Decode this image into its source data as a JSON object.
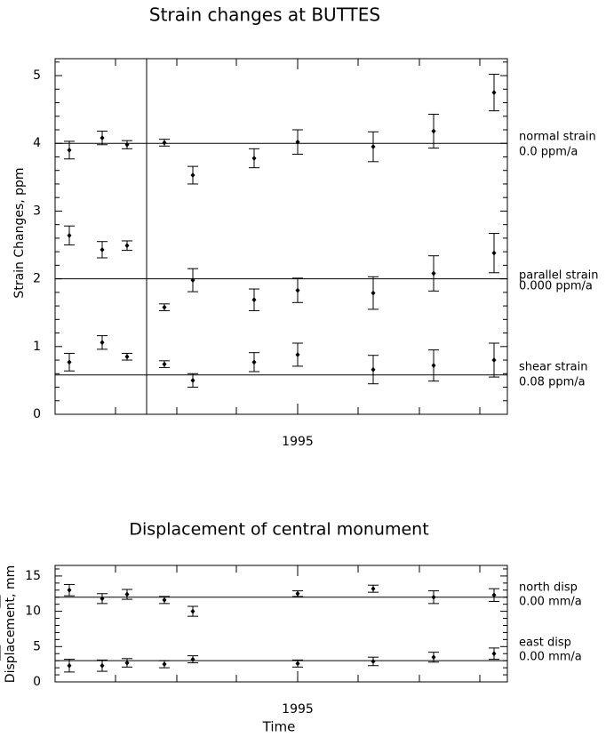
{
  "chart_data": [
    {
      "type": "scatter",
      "title": "Strain changes at BUTTES",
      "xlabel": "",
      "ylabel": "Strain Changes, ppm",
      "x_tick_labels": [
        "1995"
      ],
      "y_tick_labels": [
        "0",
        "1",
        "2",
        "3",
        "4",
        "5"
      ],
      "ylim": [
        0,
        5.25
      ],
      "series": [
        {
          "name": "normal strain",
          "rate": "0.0 ppm/a",
          "reference_level": 4.0,
          "x": [
            1,
            2,
            3,
            4,
            5,
            6,
            7,
            8,
            9,
            10
          ],
          "values": [
            3.9,
            4.08,
            3.98,
            4.01,
            3.53,
            3.78,
            4.02,
            3.95,
            4.18,
            4.75
          ],
          "errors": [
            0.13,
            0.1,
            0.06,
            0.05,
            0.13,
            0.14,
            0.18,
            0.22,
            0.25,
            0.27
          ]
        },
        {
          "name": "parallel strain",
          "rate": "0.000 ppm/a",
          "reference_level": 2.0,
          "x": [
            1,
            2,
            3,
            4,
            5,
            6,
            7,
            8,
            9,
            10
          ],
          "values": [
            2.64,
            2.43,
            2.49,
            1.58,
            1.98,
            1.69,
            1.83,
            1.79,
            2.08,
            2.38
          ],
          "errors": [
            0.14,
            0.12,
            0.07,
            0.05,
            0.17,
            0.16,
            0.18,
            0.24,
            0.26,
            0.29
          ]
        },
        {
          "name": "shear strain",
          "rate": "0.08 ppm/a",
          "reference_level": 0.58,
          "x": [
            1,
            2,
            3,
            4,
            5,
            6,
            7,
            8,
            9,
            10
          ],
          "values": [
            0.77,
            1.06,
            0.85,
            0.74,
            0.5,
            0.77,
            0.88,
            0.66,
            0.72,
            0.8
          ],
          "errors": [
            0.13,
            0.1,
            0.05,
            0.05,
            0.1,
            0.14,
            0.17,
            0.21,
            0.23,
            0.25
          ]
        }
      ]
    },
    {
      "type": "scatter",
      "title": "Displacement of central monument",
      "xlabel": "Time",
      "ylabel": "Displacement, mm",
      "x_tick_labels": [
        "1995"
      ],
      "y_tick_labels": [
        "0",
        "5",
        "10",
        "15"
      ],
      "ylim": [
        0,
        16.5
      ],
      "series": [
        {
          "name": "north disp",
          "rate": "0.00 mm/a",
          "reference_level": 12.0,
          "x": [
            1,
            2,
            3,
            4,
            5,
            7,
            8,
            9,
            10,
            11
          ],
          "values": [
            13.0,
            11.8,
            12.4,
            11.6,
            10.0,
            12.5,
            13.2,
            12.0,
            12.3,
            11.4
          ],
          "errors": [
            0.8,
            0.7,
            0.7,
            0.5,
            0.7,
            0.4,
            0.5,
            0.9,
            0.9,
            0.9
          ]
        },
        {
          "name": "east disp",
          "rate": "0.00 mm/a",
          "reference_level": 3.0,
          "x": [
            1,
            2,
            3,
            4,
            5,
            7,
            8,
            9,
            10,
            11
          ],
          "values": [
            2.3,
            2.3,
            2.7,
            2.5,
            3.2,
            2.6,
            2.9,
            3.5,
            4.0,
            4.1
          ],
          "errors": [
            0.9,
            0.8,
            0.6,
            0.5,
            0.5,
            0.5,
            0.6,
            0.7,
            0.8,
            1.1
          ]
        }
      ]
    }
  ]
}
